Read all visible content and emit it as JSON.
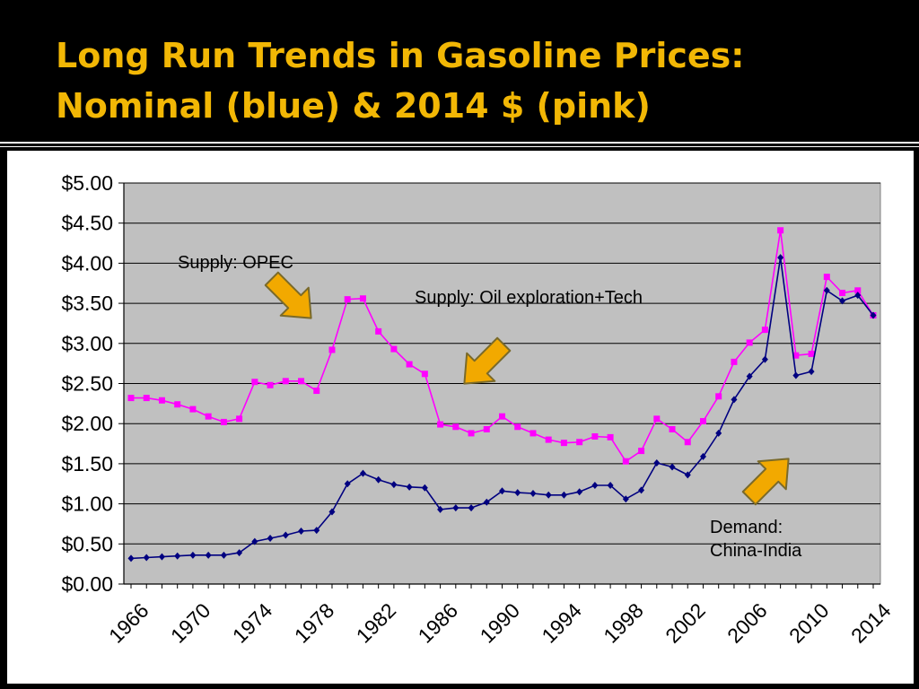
{
  "slide": {
    "title_line1": "Long Run Trends in Gasoline Prices:",
    "title_line2": "Nominal (blue) & 2014 $ (pink)"
  },
  "colors": {
    "background": "#000000",
    "title": "#F2B705",
    "plot_area": "#C0C0C0",
    "nominal": "#000080",
    "real": "#FF00FF",
    "arrow_fill": "#F2A900",
    "arrow_stroke": "#7A6A2A"
  },
  "annotations": [
    {
      "id": "opec",
      "lines": [
        "Supply: OPEC"
      ],
      "arrow": "down-right",
      "arrow_icon": "arrow-down-right-icon"
    },
    {
      "id": "oil",
      "lines": [
        "Supply: Oil exploration+Tech"
      ],
      "arrow": "down-left",
      "arrow_icon": "arrow-down-left-icon"
    },
    {
      "id": "demand",
      "lines": [
        "Demand:",
        "China-India"
      ],
      "arrow": "up-right",
      "arrow_icon": "arrow-up-right-icon"
    }
  ],
  "chart_data": {
    "type": "line",
    "title": "Long Run Trends in Gasoline Prices: Nominal (blue) & 2014 $ (pink)",
    "xlabel": "",
    "ylabel": "",
    "x": [
      1966,
      1967,
      1968,
      1969,
      1970,
      1971,
      1972,
      1973,
      1974,
      1975,
      1976,
      1977,
      1978,
      1979,
      1980,
      1981,
      1982,
      1983,
      1984,
      1985,
      1986,
      1987,
      1988,
      1989,
      1990,
      1991,
      1992,
      1993,
      1994,
      1995,
      1996,
      1997,
      1998,
      1999,
      2000,
      2001,
      2002,
      2003,
      2004,
      2005,
      2006,
      2007,
      2008,
      2009,
      2010,
      2011,
      2012,
      2013,
      2014
    ],
    "xticks": [
      1966,
      1970,
      1974,
      1978,
      1982,
      1986,
      1990,
      1994,
      1998,
      2002,
      2006,
      2010,
      2014
    ],
    "ylim": [
      0,
      5
    ],
    "yticks": [
      0,
      0.5,
      1.0,
      1.5,
      2.0,
      2.5,
      3.0,
      3.5,
      4.0,
      4.5,
      5.0
    ],
    "ytick_labels": [
      "$0.00",
      "$0.50",
      "$1.00",
      "$1.50",
      "$2.00",
      "$2.50",
      "$3.00",
      "$3.50",
      "$4.00",
      "$4.50",
      "$5.00"
    ],
    "grid": true,
    "series": [
      {
        "key": "real",
        "marker": "square",
        "values": [
          2.32,
          2.32,
          2.29,
          2.24,
          2.18,
          2.09,
          2.02,
          2.06,
          2.52,
          2.48,
          2.53,
          2.53,
          2.41,
          2.92,
          3.55,
          3.56,
          3.15,
          2.93,
          2.74,
          2.62,
          1.99,
          1.96,
          1.88,
          1.93,
          2.09,
          1.96,
          1.88,
          1.8,
          1.76,
          1.77,
          1.84,
          1.83,
          1.53,
          1.66,
          2.06,
          1.93,
          1.77,
          2.03,
          2.34,
          2.77,
          3.01,
          3.17,
          4.41,
          2.85,
          2.87,
          3.83,
          3.63,
          3.66,
          3.35
        ]
      },
      {
        "key": "nominal",
        "marker": "diamond",
        "values": [
          0.32,
          0.33,
          0.34,
          0.35,
          0.36,
          0.36,
          0.36,
          0.39,
          0.53,
          0.57,
          0.61,
          0.66,
          0.67,
          0.9,
          1.25,
          1.38,
          1.3,
          1.24,
          1.21,
          1.2,
          0.93,
          0.95,
          0.95,
          1.02,
          1.16,
          1.14,
          1.13,
          1.11,
          1.11,
          1.15,
          1.23,
          1.23,
          1.06,
          1.17,
          1.51,
          1.46,
          1.36,
          1.59,
          1.88,
          2.3,
          2.59,
          2.8,
          4.07,
          2.6,
          2.65,
          3.66,
          3.53,
          3.6,
          3.35
        ]
      }
    ]
  }
}
